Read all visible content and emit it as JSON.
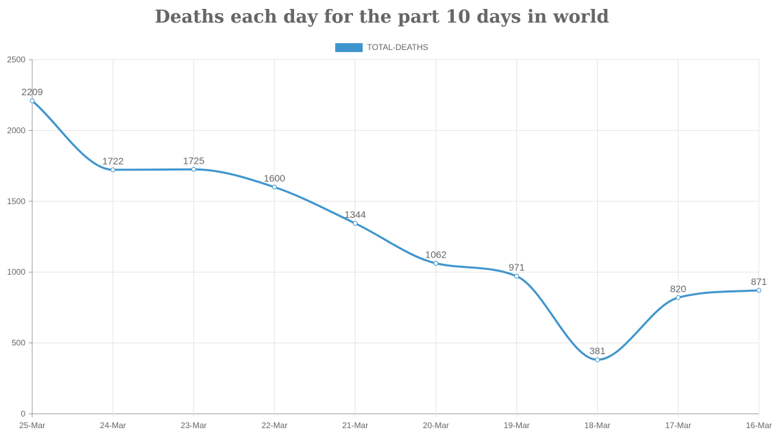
{
  "chart_data": {
    "type": "line",
    "title": "Deaths each day for the part 10 days in world",
    "categories": [
      "25-Mar",
      "24-Mar",
      "23-Mar",
      "22-Mar",
      "21-Mar",
      "20-Mar",
      "19-Mar",
      "18-Mar",
      "17-Mar",
      "16-Mar"
    ],
    "series": [
      {
        "name": "TOTAL-DEATHS",
        "values": [
          2209,
          1722,
          1725,
          1600,
          1344,
          1062,
          971,
          381,
          820,
          871
        ]
      }
    ],
    "ylim": [
      0,
      2500
    ],
    "yticks": [
      0,
      500,
      1000,
      1500,
      2000,
      2500
    ],
    "xlabel": "",
    "ylabel": "",
    "grid": true,
    "legend_position": "top-center",
    "data_labels": true,
    "line_smooth": true
  },
  "colors": {
    "series": "#3e95cd",
    "grid": "#e5e5e5",
    "axis": "#999999",
    "text": "#666666"
  }
}
